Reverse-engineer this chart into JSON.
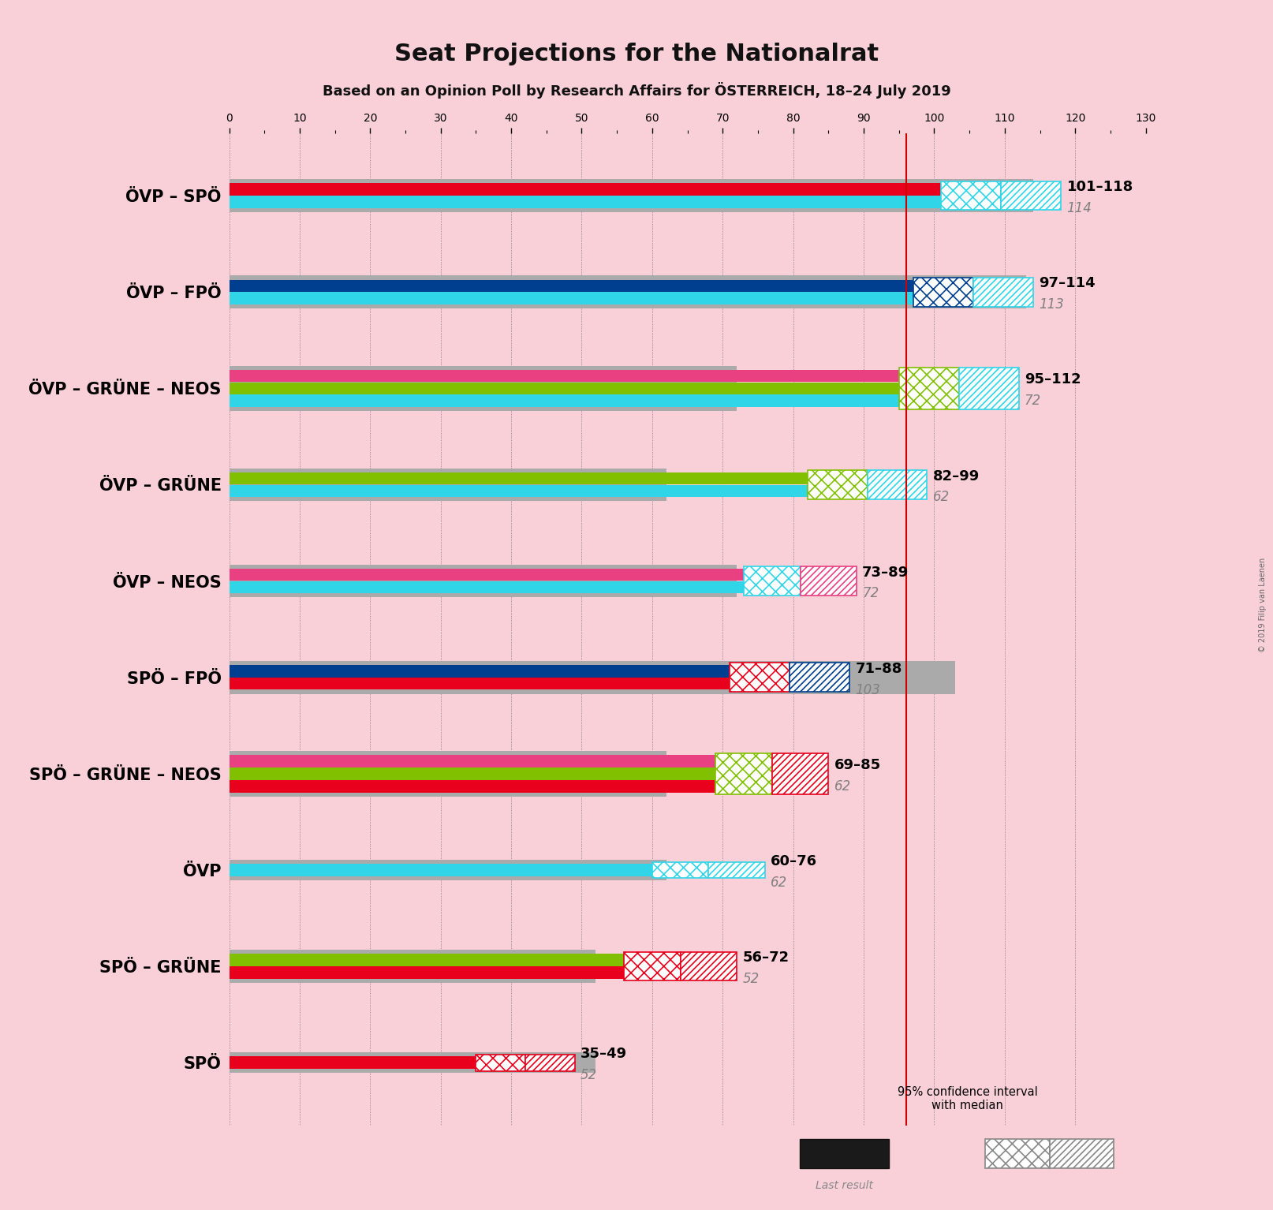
{
  "title": "Seat Projections for the Nationalrat",
  "subtitle": "Based on an Opinion Poll by Research Affairs for ÖSTERREICH, 18–24 July 2019",
  "copyright": "© 2019 Filip van Laenen",
  "background_color": "#f9d0d8",
  "majority_line": 96,
  "xlim": [
    0,
    130
  ],
  "xtick_step": 10,
  "coalitions": [
    {
      "label": "ÖVP – SPÖ",
      "range_label": "101–118",
      "median": 114,
      "ci_low": 101,
      "ci_high": 118,
      "last_result": 114,
      "party_colors": [
        "#30d5e8",
        "#e8001c"
      ],
      "ci_hatch_colors": [
        "#30d5e8",
        "#30d5e8"
      ]
    },
    {
      "label": "ÖVP – FPÖ",
      "range_label": "97–114",
      "median": 113,
      "ci_low": 97,
      "ci_high": 114,
      "last_result": 113,
      "party_colors": [
        "#30d5e8",
        "#003f8f"
      ],
      "ci_hatch_colors": [
        "#003f8f",
        "#30d5e8"
      ]
    },
    {
      "label": "ÖVP – GRÜNE – NEOS",
      "range_label": "95–112",
      "median": 72,
      "ci_low": 95,
      "ci_high": 112,
      "last_result": 72,
      "party_colors": [
        "#30d5e8",
        "#80c000",
        "#e84080"
      ],
      "ci_hatch_colors": [
        "#80c000",
        "#30d5e8"
      ]
    },
    {
      "label": "ÖVP – GRÜNE",
      "range_label": "82–99",
      "median": 62,
      "ci_low": 82,
      "ci_high": 99,
      "last_result": 62,
      "party_colors": [
        "#30d5e8",
        "#80c000"
      ],
      "ci_hatch_colors": [
        "#80c000",
        "#30d5e8"
      ]
    },
    {
      "label": "ÖVP – NEOS",
      "range_label": "73–89",
      "median": 72,
      "ci_low": 73,
      "ci_high": 89,
      "last_result": 72,
      "party_colors": [
        "#30d5e8",
        "#e84080"
      ],
      "ci_hatch_colors": [
        "#30d5e8",
        "#e84080"
      ]
    },
    {
      "label": "SPÖ – FPÖ",
      "range_label": "71–88",
      "median": 103,
      "ci_low": 71,
      "ci_high": 88,
      "last_result": 103,
      "party_colors": [
        "#e8001c",
        "#003f8f"
      ],
      "ci_hatch_colors": [
        "#e8001c",
        "#003f8f"
      ]
    },
    {
      "label": "SPÖ – GRÜNE – NEOS",
      "range_label": "69–85",
      "median": 62,
      "ci_low": 69,
      "ci_high": 85,
      "last_result": 62,
      "party_colors": [
        "#e8001c",
        "#80c000",
        "#e84080"
      ],
      "ci_hatch_colors": [
        "#80c000",
        "#e8001c"
      ]
    },
    {
      "label": "ÖVP",
      "range_label": "60–76",
      "median": 62,
      "ci_low": 60,
      "ci_high": 76,
      "last_result": 62,
      "party_colors": [
        "#30d5e8"
      ],
      "ci_hatch_colors": [
        "#30d5e8",
        "#30d5e8"
      ]
    },
    {
      "label": "SPÖ – GRÜNE",
      "range_label": "56–72",
      "median": 52,
      "ci_low": 56,
      "ci_high": 72,
      "last_result": 52,
      "party_colors": [
        "#e8001c",
        "#80c000"
      ],
      "ci_hatch_colors": [
        "#e8001c",
        "#e8001c"
      ]
    },
    {
      "label": "SPÖ",
      "range_label": "35–49",
      "median": 52,
      "ci_low": 35,
      "ci_high": 49,
      "last_result": 52,
      "party_colors": [
        "#e8001c"
      ],
      "ci_hatch_colors": [
        "#e8001c",
        "#e8001c"
      ]
    }
  ]
}
